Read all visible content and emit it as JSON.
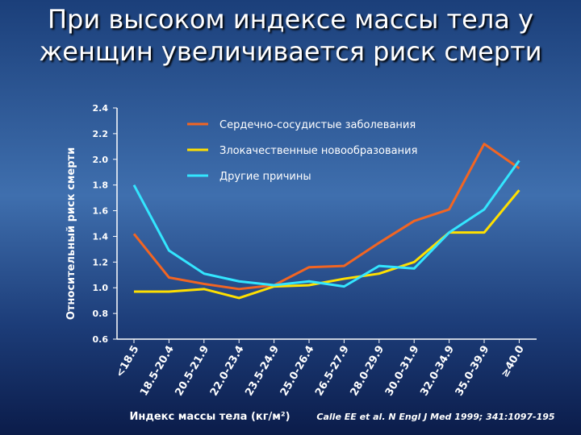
{
  "chart_data": {
    "type": "line",
    "title": "При высоком индексе массы тела у женщин увеличивается риск смерти",
    "y_label": "Относительный риск смерти",
    "x_label": "Индекс массы тела  (кг/м²)",
    "source": "Calle EE et al. N Engl J Med 1999; 341:1097-195",
    "categories": [
      "<18.5",
      "18.5-20.4",
      "20.5-21.9",
      "22.0-23.4",
      "23.5-24.9",
      "25.0-26.4",
      "26.5-27.9",
      "28.0-29.9",
      "30.0-31.9",
      "32.0-34.9",
      "35.0-39.9",
      "≥40.0"
    ],
    "series": [
      {
        "name": "Сердечно-сосудистые заболевания",
        "color": "#f26522",
        "values": [
          1.42,
          1.08,
          1.03,
          0.99,
          1.02,
          1.16,
          1.17,
          1.35,
          1.52,
          1.61,
          2.12,
          1.93
        ]
      },
      {
        "name": "Злокачественные новообразования",
        "color": "#ffe000",
        "values": [
          0.97,
          0.97,
          0.99,
          0.92,
          1.01,
          1.02,
          1.07,
          1.11,
          1.2,
          1.43,
          1.43,
          1.76
        ]
      },
      {
        "name": "Другие причины",
        "color": "#33e6ff",
        "values": [
          1.8,
          1.29,
          1.11,
          1.05,
          1.02,
          1.05,
          1.01,
          1.17,
          1.15,
          1.43,
          1.61,
          1.99
        ]
      }
    ],
    "ylim": [
      0.6,
      2.4
    ],
    "yticks": [
      0.6,
      0.8,
      {
        "value": 1,
        "label": "1.0"
      },
      1.2,
      1.4,
      1.6,
      1.8,
      {
        "value": 2,
        "label": "2.0"
      },
      2.2,
      2.4
    ]
  }
}
